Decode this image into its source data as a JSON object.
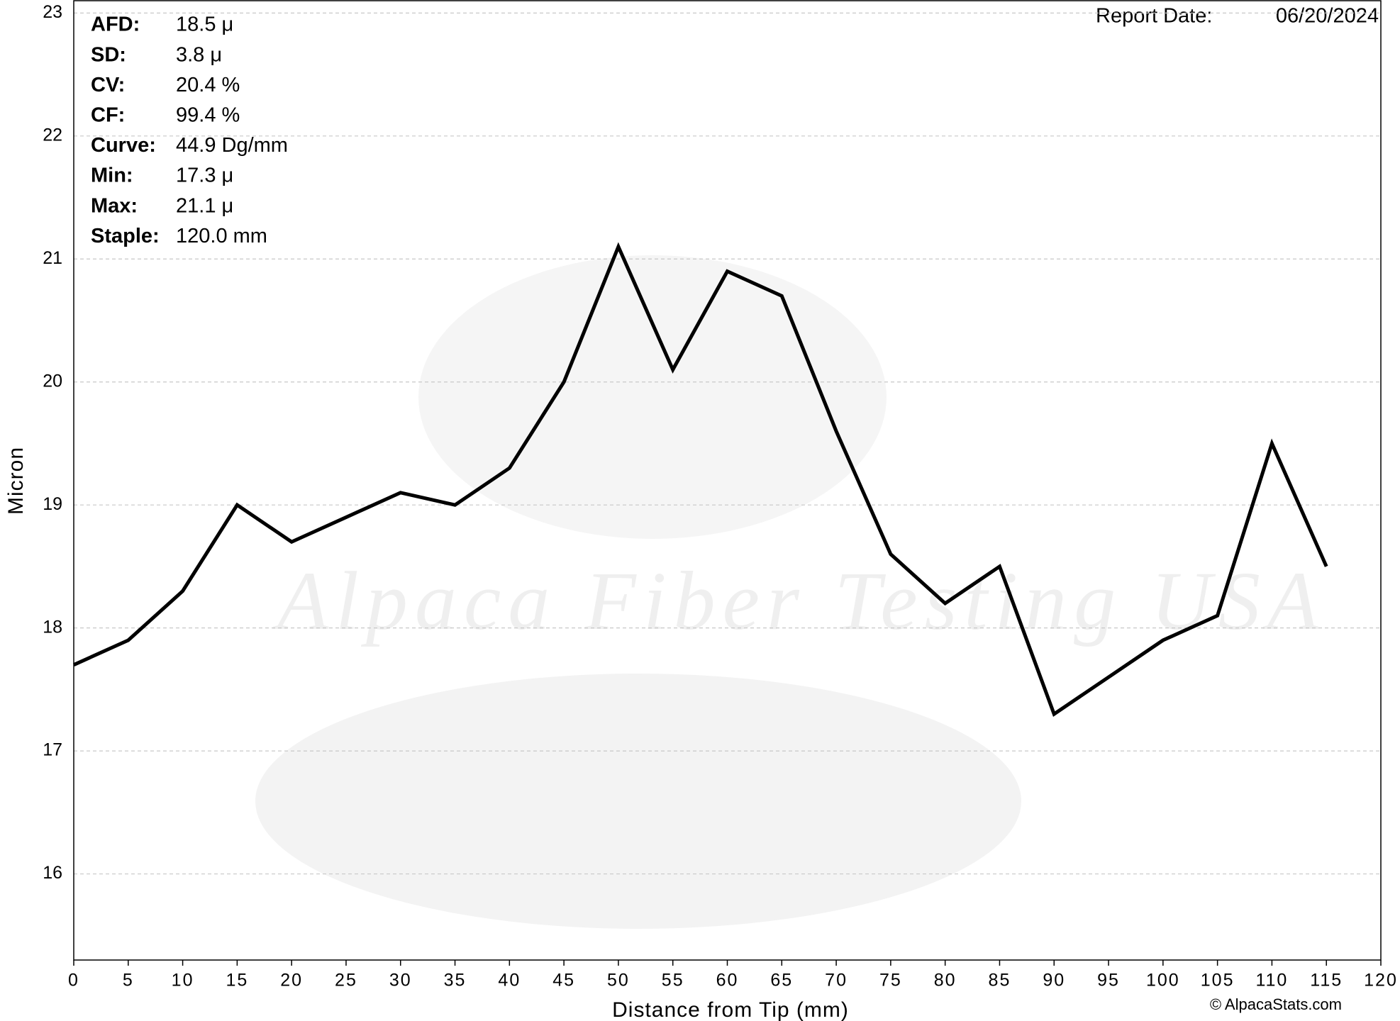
{
  "chart_data": {
    "type": "line",
    "x_label": "Distance from Tip (mm)",
    "y_label": "Micron",
    "x": [
      0,
      5,
      10,
      15,
      20,
      25,
      30,
      35,
      40,
      45,
      50,
      55,
      60,
      65,
      70,
      75,
      80,
      85,
      90,
      95,
      100,
      105,
      110,
      115
    ],
    "series": [
      {
        "name": "Micron",
        "color": "#000000",
        "values": [
          17.7,
          17.9,
          18.3,
          19.0,
          18.7,
          18.9,
          19.1,
          19.0,
          19.3,
          20.0,
          21.1,
          20.1,
          20.9,
          20.7,
          19.6,
          18.6,
          18.2,
          18.5,
          17.3,
          17.6,
          17.9,
          18.1,
          19.5,
          18.5
        ]
      }
    ],
    "xlim": [
      0,
      120
    ],
    "xticks": [
      0,
      5,
      10,
      15,
      20,
      25,
      30,
      35,
      40,
      45,
      50,
      55,
      60,
      65,
      70,
      75,
      80,
      85,
      90,
      95,
      100,
      105,
      110,
      115,
      120
    ],
    "ylim": [
      15.3,
      23.1
    ],
    "yticks": [
      16,
      17,
      18,
      19,
      20,
      21,
      22,
      23
    ],
    "grid": true,
    "stats": [
      {
        "label": "AFD:",
        "value": "18.5 μ"
      },
      {
        "label": "SD:",
        "value": "3.8 μ"
      },
      {
        "label": "CV:",
        "value": "20.4 %"
      },
      {
        "label": "CF:",
        "value": "99.4 %"
      },
      {
        "label": "Curve:",
        "value": "44.9 Dg/mm"
      },
      {
        "label": "Min:",
        "value": "17.3 μ"
      },
      {
        "label": "Max:",
        "value": "21.1 μ"
      },
      {
        "label": "Staple:",
        "value": "120.0 mm"
      }
    ],
    "report_date_label": "Report Date:",
    "report_date": "06/20/2024",
    "watermark": "Alpaca Fiber Testing USA",
    "copyright": "© AlpacaStats.com"
  }
}
